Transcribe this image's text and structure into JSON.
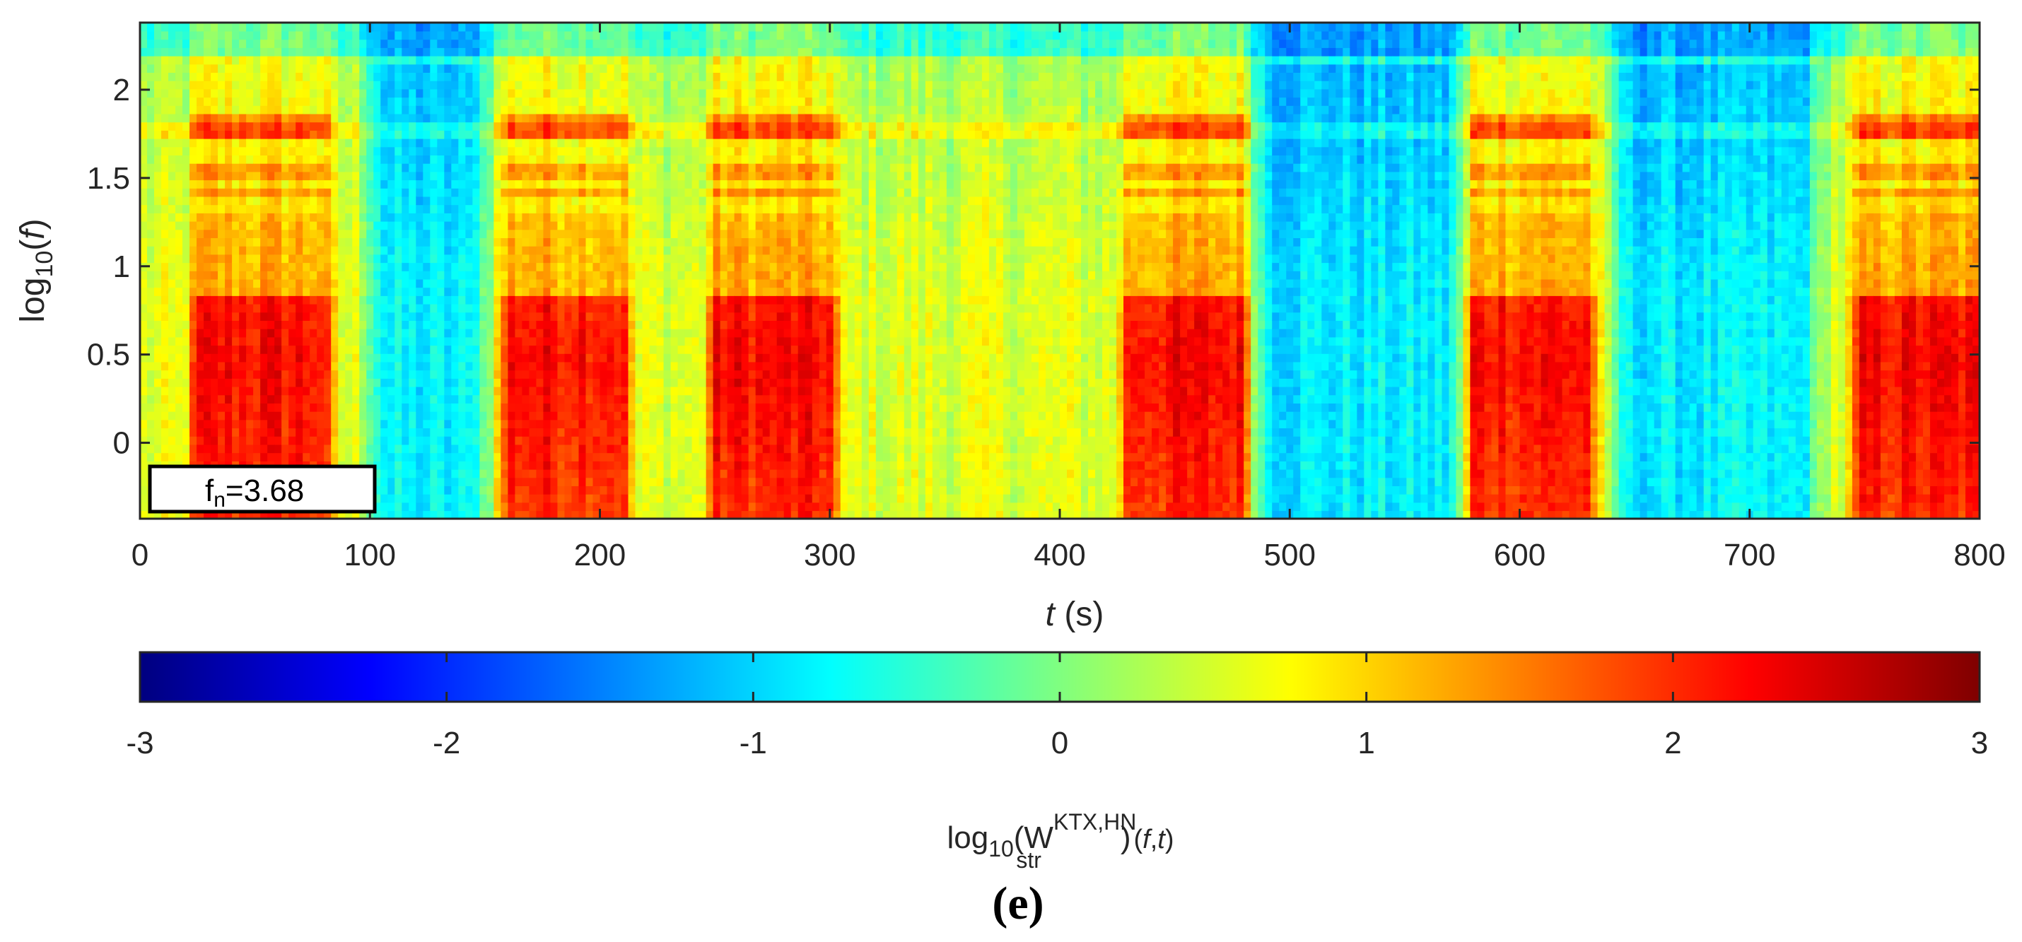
{
  "chart_data": {
    "type": "heatmap",
    "title": "",
    "xlabel": "t",
    "xlabel_unit": "(s)",
    "ylabel_prefix": "log",
    "ylabel_sub": "10",
    "ylabel_var": "f",
    "xlim": [
      0,
      800
    ],
    "ylim": [
      -0.43,
      2.38
    ],
    "xticks": [
      0,
      100,
      200,
      300,
      400,
      500,
      600,
      700,
      800
    ],
    "xtick_labels": [
      "0",
      "100",
      "200",
      "300",
      "400",
      "500",
      "600",
      "700",
      "800"
    ],
    "yticks": [
      0,
      0.5,
      1,
      1.5,
      2
    ],
    "ytick_labels": [
      "0",
      "0.5",
      "1",
      "1.5",
      "2"
    ],
    "annotation": {
      "main": "f",
      "sub": "n",
      "value": "=3.68"
    },
    "colorbar": {
      "colormap": "jet",
      "range": [
        -3,
        3
      ],
      "ticks": [
        -3,
        -2,
        -1,
        0,
        1,
        2,
        3
      ],
      "tick_labels": [
        "-3",
        "-2",
        "-1",
        "0",
        "1",
        "2",
        "3"
      ],
      "label": {
        "prefix": "log",
        "sub10": "10",
        "W": "(W",
        "sup": "KTX,HN",
        "sub": "str",
        "close": ")",
        "args_open": "(",
        "f": "f",
        "comma": ",",
        "t": "t",
        "args_close": ")"
      }
    },
    "active_segments_s": [
      [
        25,
        80
      ],
      [
        160,
        210
      ],
      [
        250,
        300
      ],
      [
        430,
        480
      ],
      [
        580,
        630
      ],
      [
        748,
        800
      ]
    ],
    "quiet_segments_s": [
      [
        95,
        155
      ],
      [
        480,
        580
      ],
      [
        635,
        735
      ]
    ],
    "values_description_peak_log10": 2.3,
    "values_quiet_log10": -1.1,
    "panel_label": "(e)"
  }
}
